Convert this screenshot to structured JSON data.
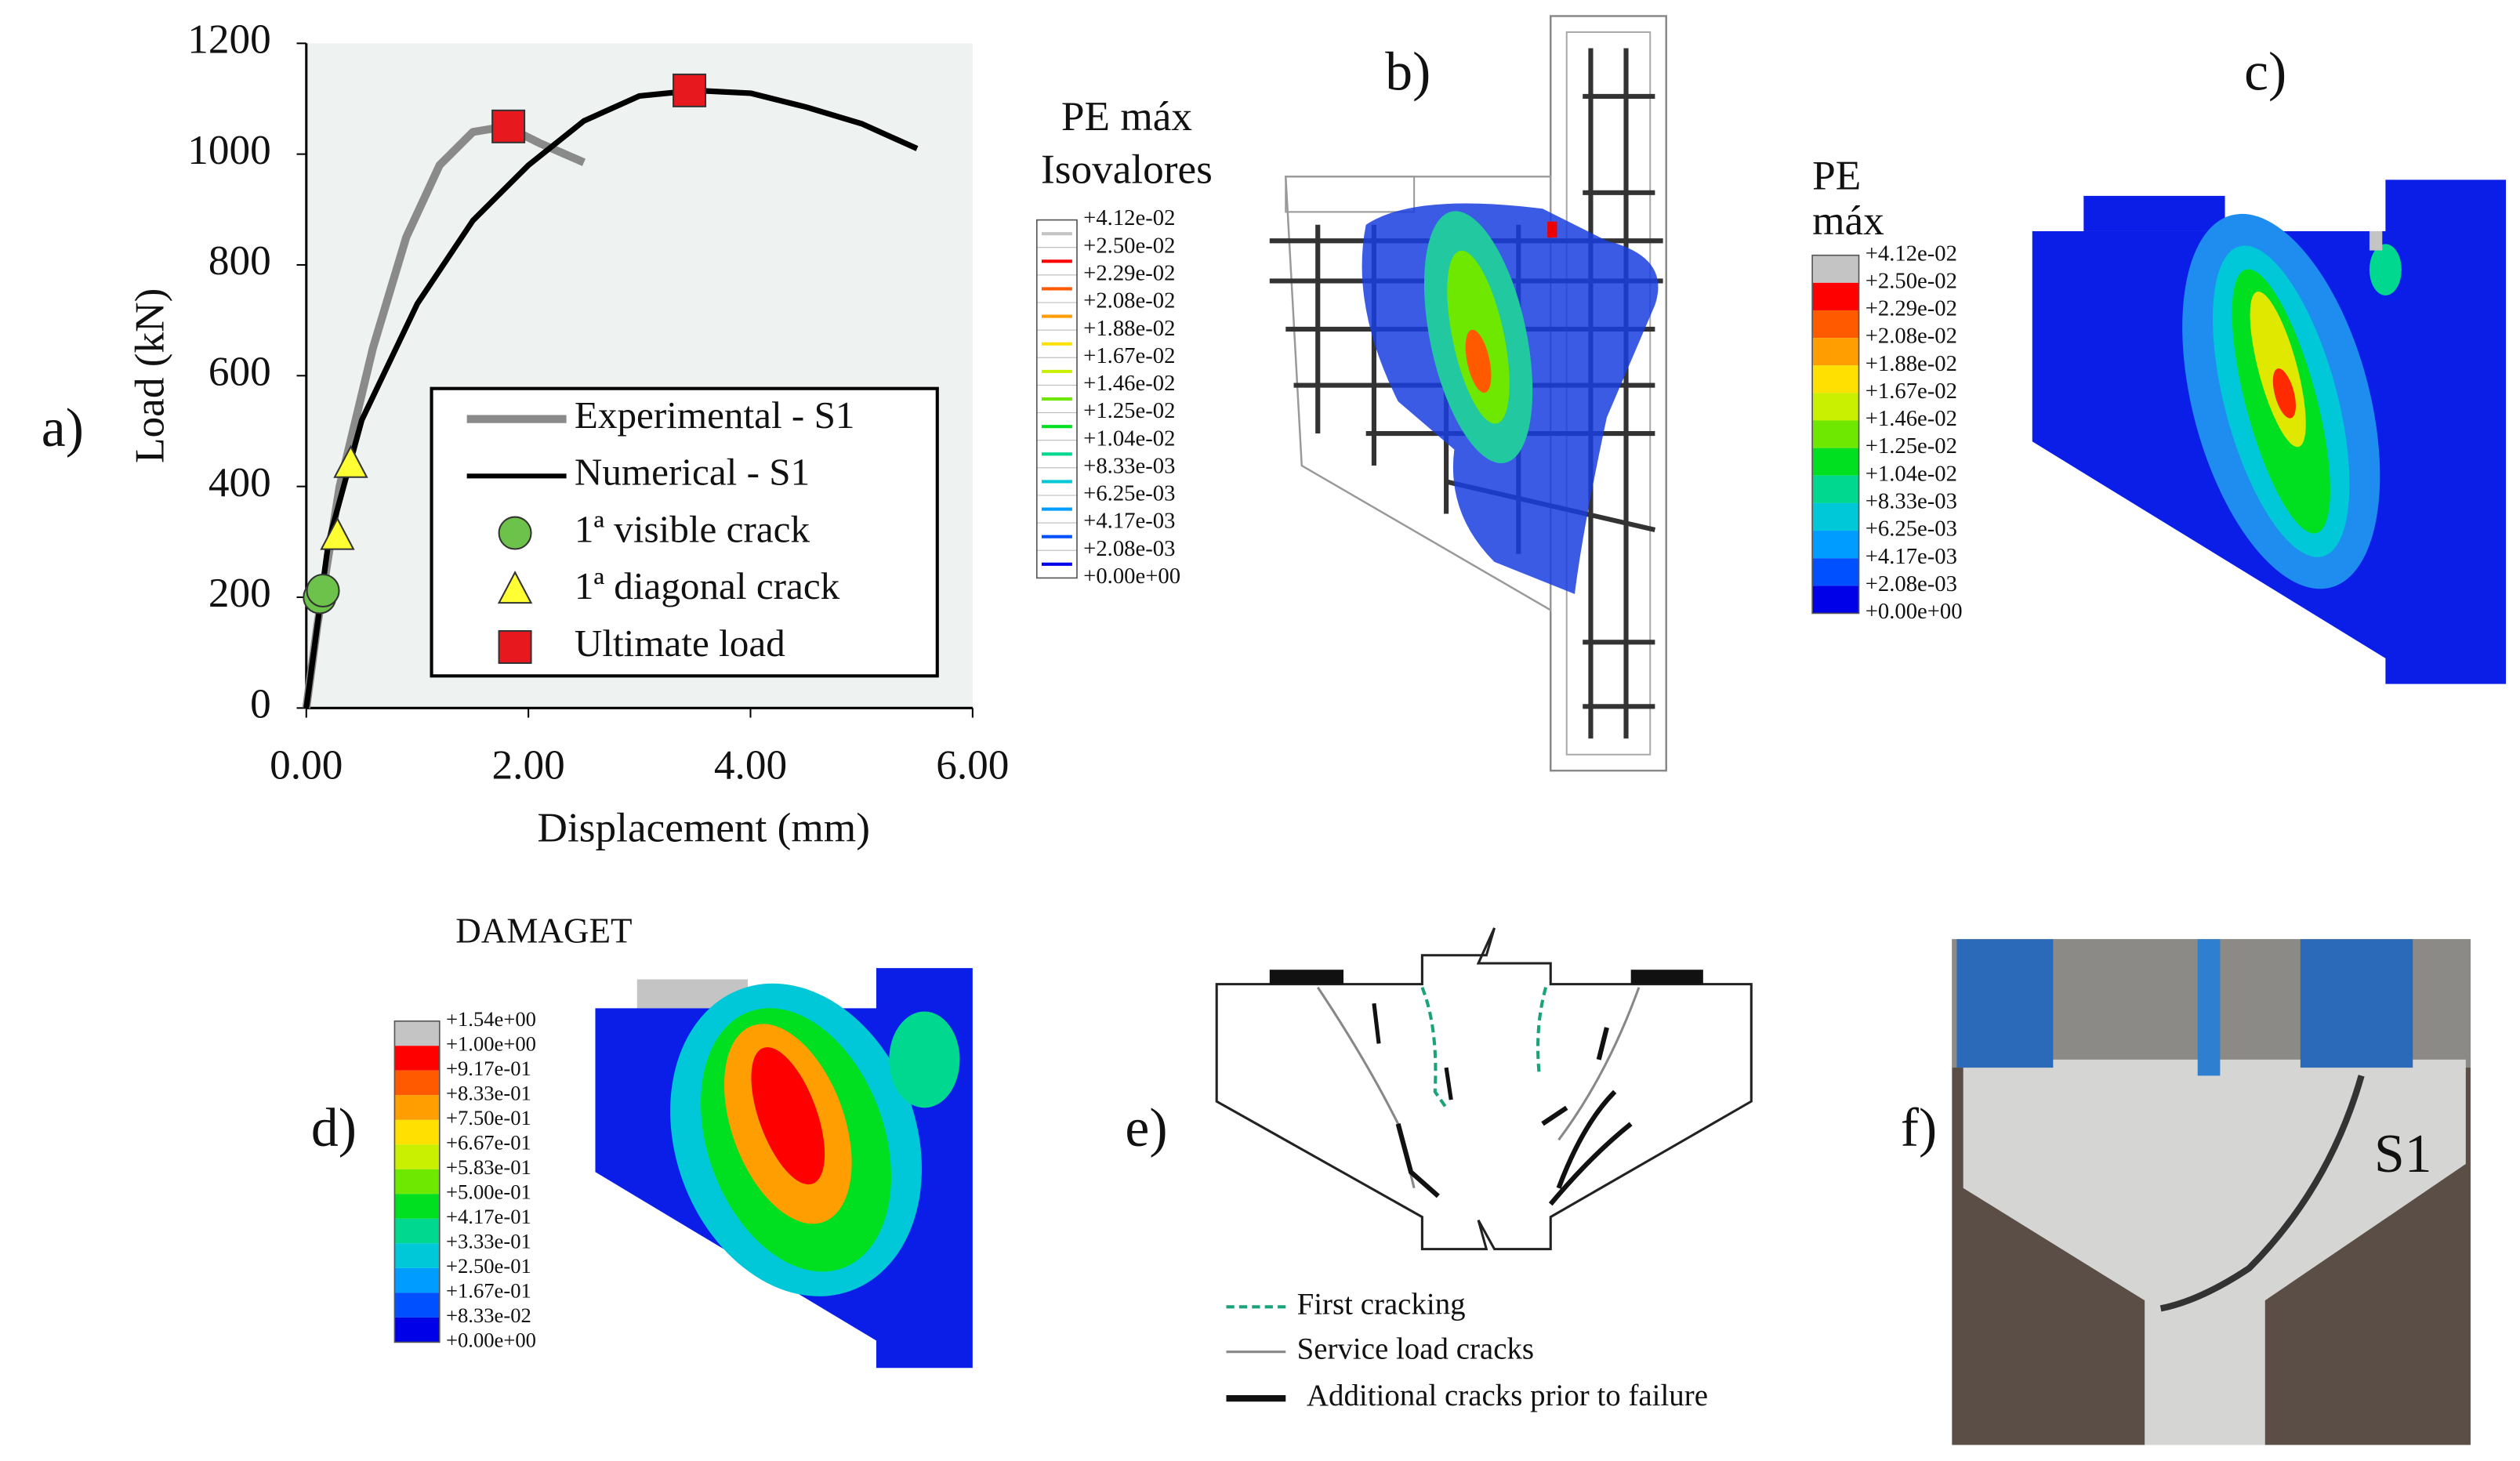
{
  "panel_labels": [
    "a)",
    "b)",
    "c)",
    "d)",
    "e)",
    "f)"
  ],
  "chart_data": {
    "type": "line",
    "xlabel": "Displacement (mm)",
    "ylabel": "Load (kN)",
    "xlim": [
      0,
      6
    ],
    "ylim": [
      0,
      1200
    ],
    "xticks": [
      {
        "value": 0,
        "label": "0.00"
      },
      {
        "value": 2,
        "label": "2.00"
      },
      {
        "value": 4,
        "label": "4.00"
      },
      {
        "value": 6,
        "label": "6.00"
      }
    ],
    "yticks": [
      0,
      200,
      400,
      600,
      800,
      1000,
      1200
    ],
    "background": "#eef3f1",
    "series": [
      {
        "name": "Experimental - S1",
        "color": "#8a8a8a",
        "x": [
          0,
          0.1,
          0.3,
          0.6,
          0.9,
          1.2,
          1.5,
          1.8,
          2.1,
          2.5
        ],
        "values": [
          0,
          150,
          400,
          650,
          850,
          980,
          1040,
          1050,
          1020,
          985
        ]
      },
      {
        "name": "Numerical - S1",
        "color": "#000000",
        "x": [
          0,
          0.2,
          0.5,
          1.0,
          1.5,
          2.0,
          2.5,
          3.0,
          3.5,
          4.0,
          4.5,
          5.0,
          5.5
        ],
        "values": [
          0,
          300,
          520,
          730,
          880,
          980,
          1060,
          1105,
          1115,
          1110,
          1085,
          1055,
          1010
        ]
      },
      {
        "name": "1ª visible crack",
        "color": "#6cc24a",
        "marker": "circle",
        "x": [
          0.12,
          0.15
        ],
        "values": [
          200,
          212
        ]
      },
      {
        "name": "1ª diagonal crack",
        "color": "#ffff33",
        "marker": "triangle",
        "x": [
          0.28,
          0.4
        ],
        "values": [
          310,
          440
        ]
      },
      {
        "name": "Ultimate load",
        "color": "#e8191e",
        "marker": "square",
        "x": [
          1.82,
          3.45
        ],
        "values": [
          1050,
          1115
        ]
      }
    ]
  },
  "panel_b": {
    "title": [
      "PE máx",
      "Isovalores"
    ],
    "colorbar_labels": [
      "+4.12e-02",
      "+2.50e-02",
      "+2.29e-02",
      "+2.08e-02",
      "+1.88e-02",
      "+1.67e-02",
      "+1.46e-02",
      "+1.25e-02",
      "+1.04e-02",
      "+8.33e-03",
      "+6.25e-03",
      "+4.17e-03",
      "+2.08e-03",
      "+0.00e+00"
    ]
  },
  "panel_c": {
    "title": [
      "PE",
      "máx"
    ],
    "colorbar_labels": [
      "+4.12e-02",
      "+2.50e-02",
      "+2.29e-02",
      "+2.08e-02",
      "+1.88e-02",
      "+1.67e-02",
      "+1.46e-02",
      "+1.25e-02",
      "+1.04e-02",
      "+8.33e-03",
      "+6.25e-03",
      "+4.17e-03",
      "+2.08e-03",
      "+0.00e+00"
    ]
  },
  "panel_d": {
    "title": "DAMAGET",
    "colorbar_labels": [
      "+1.54e+00",
      "+1.00e+00",
      "+9.17e-01",
      "+8.33e-01",
      "+7.50e-01",
      "+6.67e-01",
      "+5.83e-01",
      "+5.00e-01",
      "+4.17e-01",
      "+3.33e-01",
      "+2.50e-01",
      "+1.67e-01",
      "+8.33e-02",
      "+0.00e+00"
    ]
  },
  "colorbar_colors": [
    "#c4c4c4",
    "#ff0000",
    "#ff5a00",
    "#ff9e00",
    "#ffe000",
    "#c8f000",
    "#6fe800",
    "#00e020",
    "#00d890",
    "#00c8d8",
    "#009cff",
    "#0050ff",
    "#0000e8"
  ],
  "panel_e": {
    "legend": [
      "First cracking",
      "Service load cracks",
      "Additional cracks prior to failure"
    ]
  },
  "panel_f": {
    "label": "S1"
  }
}
